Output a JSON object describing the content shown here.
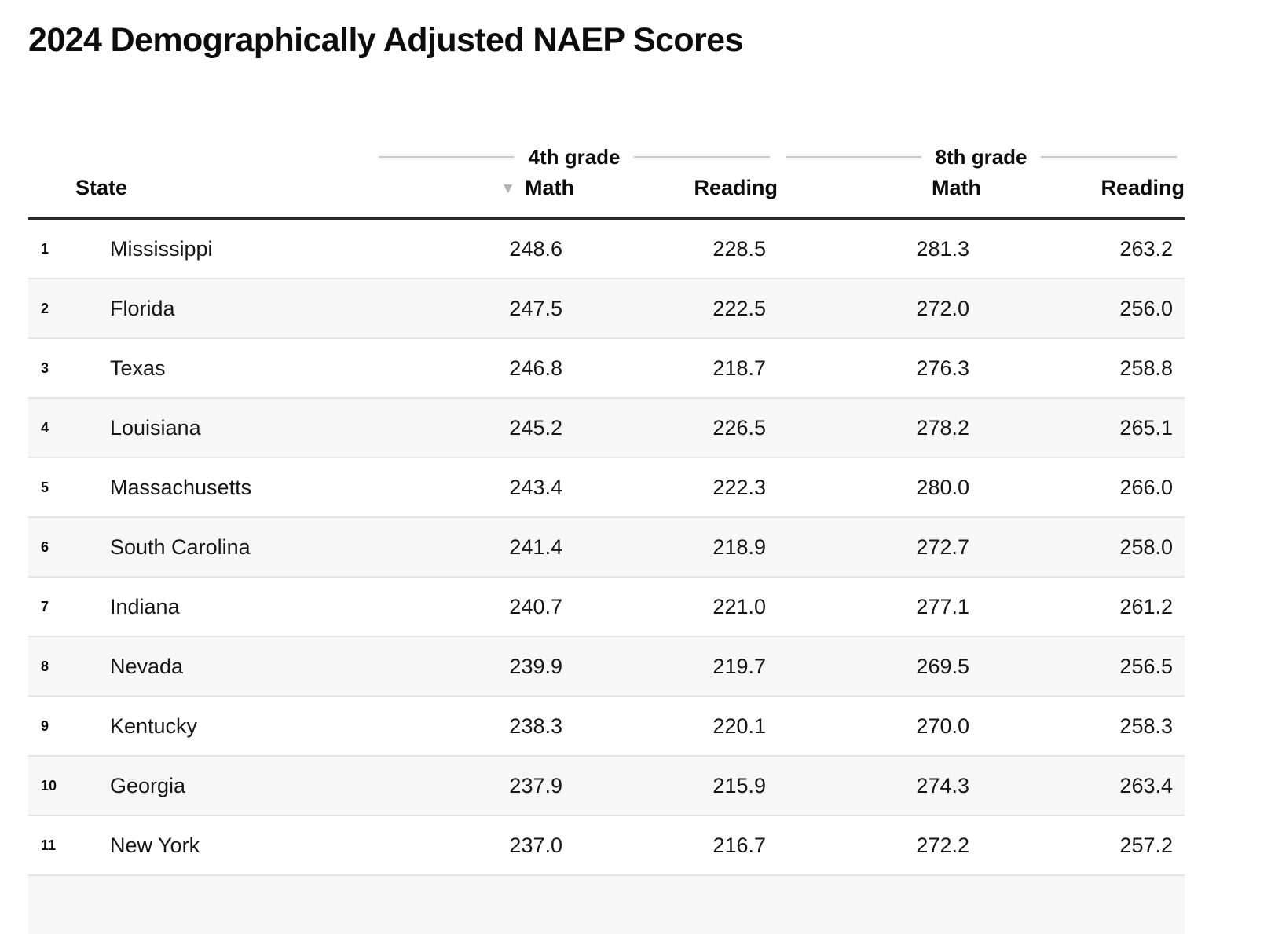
{
  "title": "2024 Demographically Adjusted NAEP Scores",
  "header": {
    "group_4th": "4th grade",
    "group_8th": "8th grade",
    "state": "State",
    "math4": "Math",
    "reading4": "Reading",
    "math8": "Math",
    "reading8": "Reading",
    "sort_icon": "▼"
  },
  "chart_data": {
    "type": "table",
    "title": "2024 Demographically Adjusted NAEP Scores",
    "column_groups": [
      {
        "label": "4th grade",
        "columns": [
          "Math",
          "Reading"
        ]
      },
      {
        "label": "8th grade",
        "columns": [
          "Math",
          "Reading"
        ]
      }
    ],
    "columns": [
      "State",
      "4th grade Math",
      "4th grade Reading",
      "8th grade Math",
      "8th grade Reading"
    ],
    "sort": {
      "column": "4th grade Math",
      "direction": "descending"
    },
    "rows": [
      {
        "rank": 1,
        "state": "Mississippi",
        "scores": [
          248.6,
          228.5,
          281.3,
          263.2
        ]
      },
      {
        "rank": 2,
        "state": "Florida",
        "scores": [
          247.5,
          222.5,
          272.0,
          256.0
        ]
      },
      {
        "rank": 3,
        "state": "Texas",
        "scores": [
          246.8,
          218.7,
          276.3,
          258.8
        ]
      },
      {
        "rank": 4,
        "state": "Louisiana",
        "scores": [
          245.2,
          226.5,
          278.2,
          265.1
        ]
      },
      {
        "rank": 5,
        "state": "Massachusetts",
        "scores": [
          243.4,
          222.3,
          280.0,
          266.0
        ]
      },
      {
        "rank": 6,
        "state": "South Carolina",
        "scores": [
          241.4,
          218.9,
          272.7,
          258.0
        ]
      },
      {
        "rank": 7,
        "state": "Indiana",
        "scores": [
          240.7,
          221.0,
          277.1,
          261.2
        ]
      },
      {
        "rank": 8,
        "state": "Nevada",
        "scores": [
          239.9,
          219.7,
          269.5,
          256.5
        ]
      },
      {
        "rank": 9,
        "state": "Kentucky",
        "scores": [
          238.3,
          220.1,
          270.0,
          258.3
        ]
      },
      {
        "rank": 10,
        "state": "Georgia",
        "scores": [
          237.9,
          215.9,
          274.3,
          263.4
        ]
      },
      {
        "rank": 11,
        "state": "New York",
        "scores": [
          237.0,
          216.7,
          272.2,
          257.2
        ]
      }
    ]
  },
  "colors": {
    "stripe": "#f7f7f7",
    "row_border": "#e4e4e4",
    "header_border": "#2b2b2b",
    "spanner_line": "#c8c8c8",
    "sort_icon": "#b3b3b3",
    "text": "#161616"
  }
}
